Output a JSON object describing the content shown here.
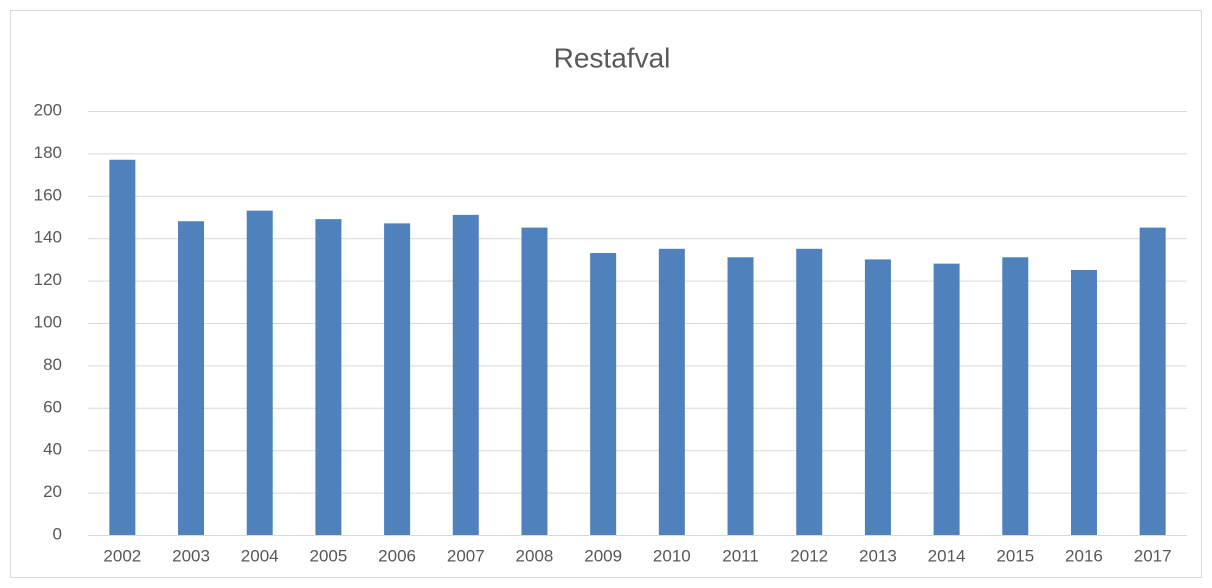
{
  "chart_data": {
    "type": "bar",
    "title": "Restafval",
    "categories": [
      "2002",
      "2003",
      "2004",
      "2005",
      "2006",
      "2007",
      "2008",
      "2009",
      "2010",
      "2011",
      "2012",
      "2013",
      "2014",
      "2015",
      "2016",
      "2017"
    ],
    "values": [
      177,
      148,
      153,
      149,
      147,
      151,
      145,
      133,
      135,
      131,
      135,
      130,
      128,
      131,
      125,
      145
    ],
    "color": "#4f81bd",
    "ylim": [
      0,
      200
    ],
    "yticks": [
      0,
      20,
      40,
      60,
      80,
      100,
      120,
      140,
      160,
      180,
      200
    ],
    "grid": true
  }
}
